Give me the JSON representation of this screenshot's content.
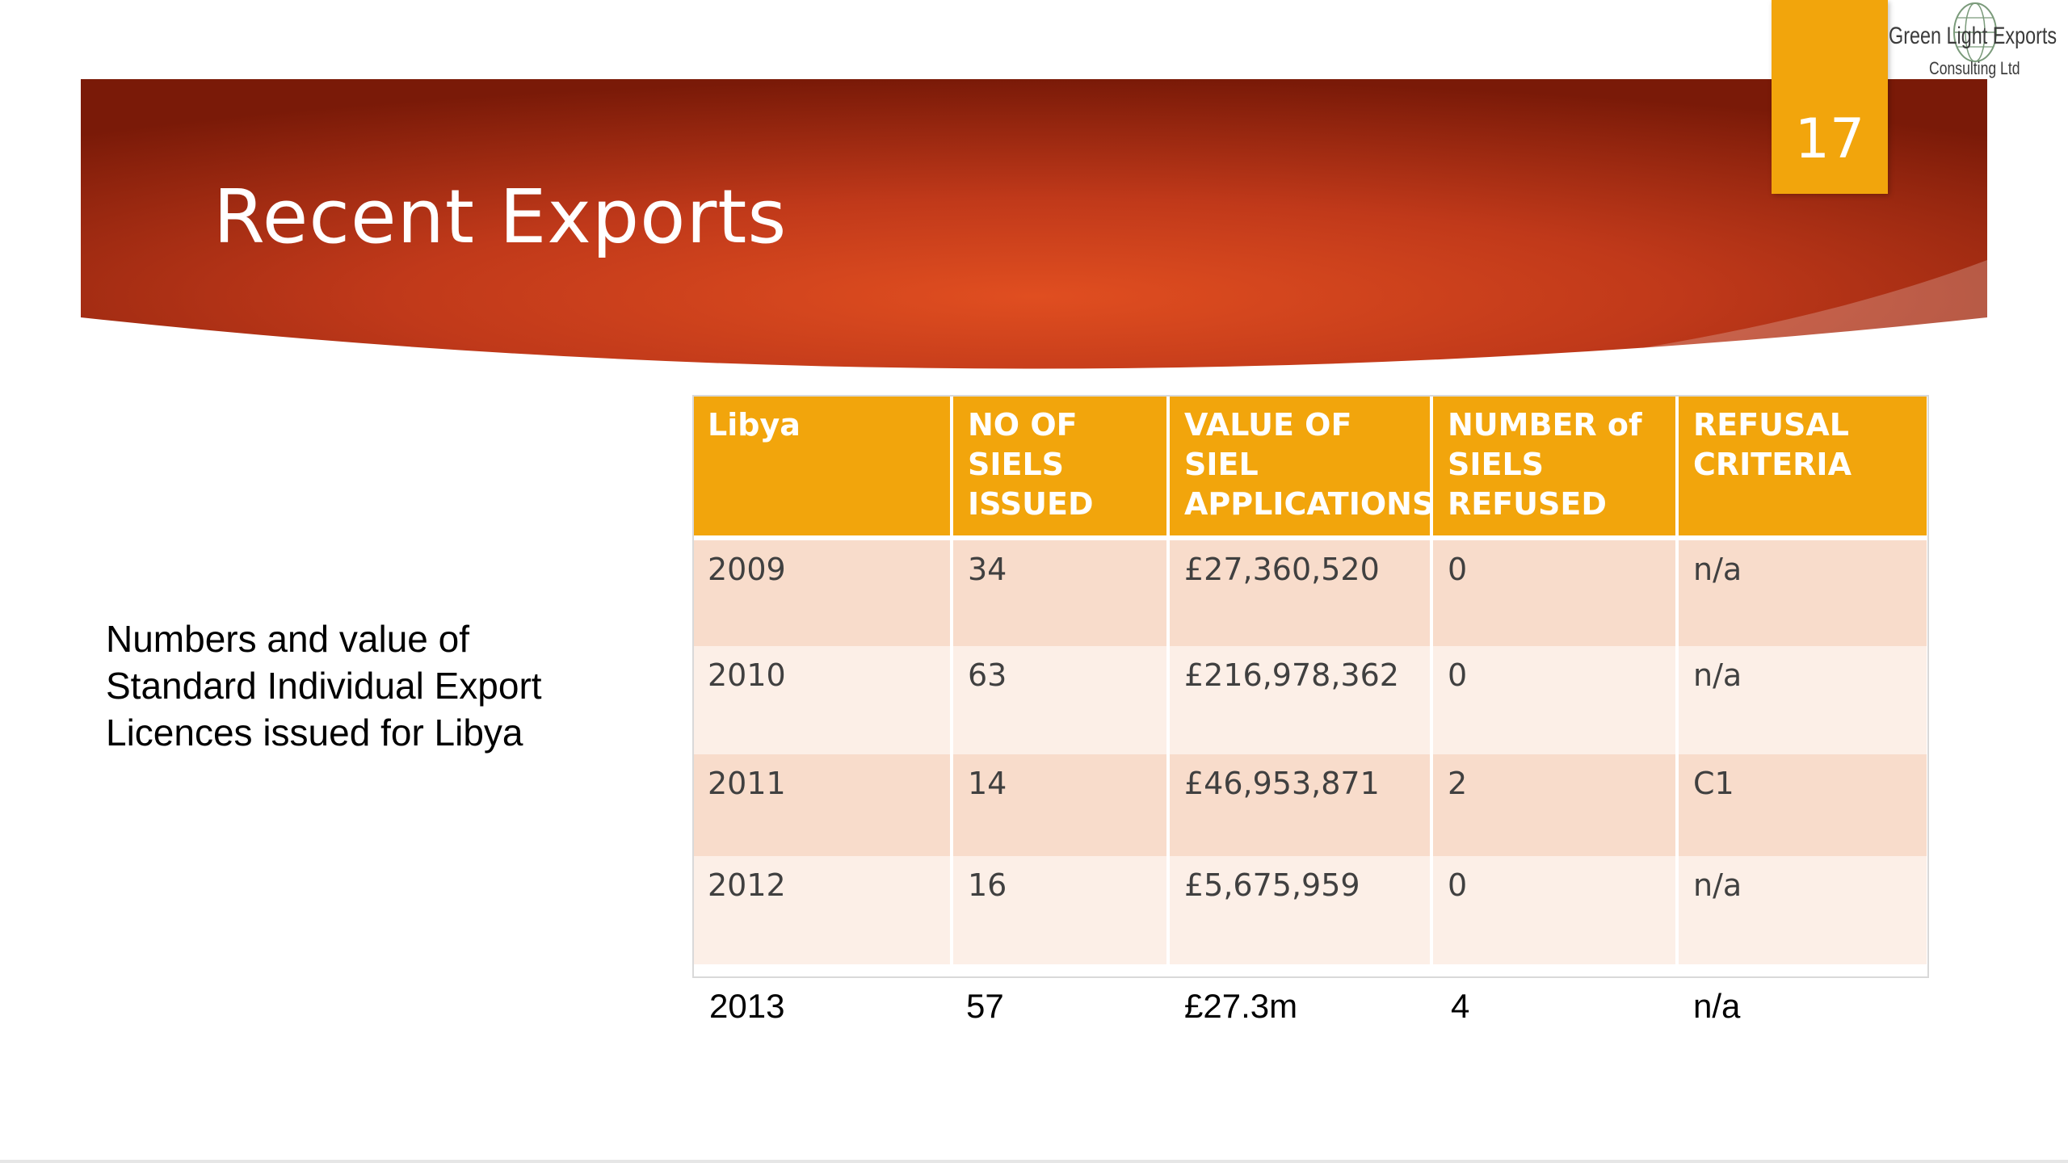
{
  "slide": {
    "title": "Recent Exports",
    "number": "17",
    "colors": {
      "banner_dark": "#7a1a08",
      "banner_mid": "#d84a1c",
      "accent_orange": "#f2a50c",
      "row_odd": "#f8dccb",
      "row_even": "#fcefe7"
    }
  },
  "logo": {
    "name": "Green Light Exports",
    "subtitle": "Consulting Ltd",
    "icon": "globe-icon"
  },
  "description": "Numbers and value of Standard Individual Export Licences issued for Libya",
  "table": {
    "headers": [
      "Libya",
      "NO OF SIELS ISSUED",
      "VALUE OF SIEL APPLICATIONS",
      "NUMBER of SIELS REFUSED",
      "REFUSAL CRITERIA"
    ],
    "rows": [
      [
        "2009",
        "34",
        "£27,360,520",
        "0",
        "n/a"
      ],
      [
        "2010",
        "63",
        "£216,978,362",
        "0",
        "n/a"
      ],
      [
        "2011",
        "14",
        "£46,953,871",
        "2",
        "C1"
      ],
      [
        "2012",
        "16",
        "£5,675,959",
        "0",
        "n/a"
      ]
    ]
  },
  "extra_row": [
    "2013",
    "57",
    "£27.3m",
    "4",
    "n/a"
  ]
}
